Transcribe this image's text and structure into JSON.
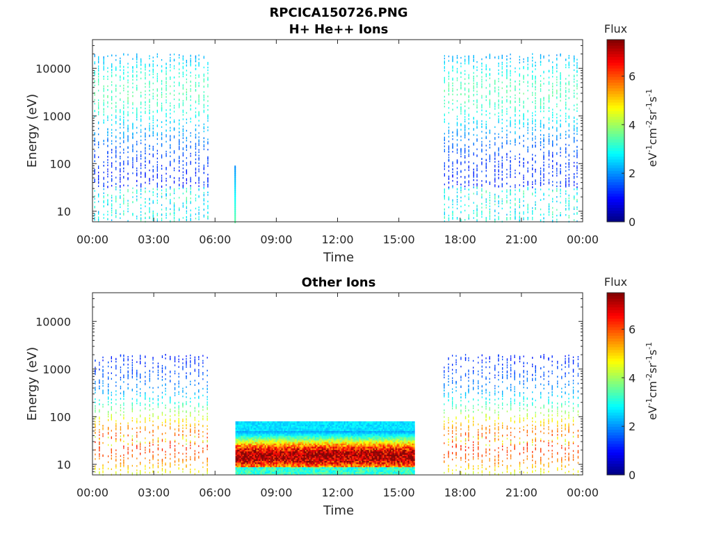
{
  "figure": {
    "filename": "RPCICA150726.PNG"
  },
  "chart_data": [
    {
      "type": "heatmap",
      "title": "H+ He++ Ions",
      "xlabel": "Time",
      "ylabel": "Energy (eV)",
      "x_ticks": [
        "00:00",
        "03:00",
        "06:00",
        "09:00",
        "12:00",
        "15:00",
        "18:00",
        "21:00",
        "00:00"
      ],
      "x_range_hours": [
        0,
        24
      ],
      "y_scale": "log",
      "y_ticks": [
        "10",
        "100",
        "1000",
        "10000"
      ],
      "y_range": [
        6,
        40000
      ],
      "colorbar": {
        "title": "Flux",
        "label_base": "eV",
        "label_units": "cm",
        "label_units2": "sr",
        "label_units3": "s",
        "sup_neg1": "-1",
        "sup_neg2": "-2",
        "ticks": [
          "0",
          "2",
          "4",
          "6"
        ],
        "range": [
          0,
          7.5
        ],
        "colormap": "jet"
      },
      "segments": [
        {
          "start_h": 0.0,
          "end_h": 5.9,
          "kind": "sweeps",
          "e_min": 6,
          "e_max": 20000,
          "peak_flux": 2.2,
          "peak_e": 3000
        },
        {
          "start_h": 6.95,
          "end_h": 7.05,
          "kind": "spike",
          "e_min": 6,
          "e_max": 85,
          "peak_flux": 3.5,
          "peak_e": 10
        },
        {
          "start_h": 17.1,
          "end_h": 24.0,
          "kind": "sweeps",
          "e_min": 6,
          "e_max": 20000,
          "peak_flux": 2.2,
          "peak_e": 3000
        }
      ]
    },
    {
      "type": "heatmap",
      "title": "Other Ions",
      "xlabel": "Time",
      "ylabel": "Energy (eV)",
      "x_ticks": [
        "00:00",
        "03:00",
        "06:00",
        "09:00",
        "12:00",
        "15:00",
        "18:00",
        "21:00",
        "00:00"
      ],
      "x_range_hours": [
        0,
        24
      ],
      "y_scale": "log",
      "y_ticks": [
        "10",
        "100",
        "1000",
        "10000"
      ],
      "y_range": [
        6,
        40000
      ],
      "colorbar": {
        "title": "Flux",
        "label_base": "eV",
        "label_units": "cm",
        "label_units2": "sr",
        "label_units3": "s",
        "sup_neg1": "-1",
        "sup_neg2": "-2",
        "ticks": [
          "0",
          "2",
          "4",
          "6"
        ],
        "range": [
          0,
          7.5
        ],
        "colormap": "jet"
      },
      "segments": [
        {
          "start_h": 0.0,
          "end_h": 5.9,
          "kind": "sparse",
          "e_min": 6,
          "e_max": 2000,
          "peak_flux": 5.0,
          "peak_e": 25
        },
        {
          "start_h": 7.0,
          "end_h": 15.85,
          "kind": "dense",
          "e_min": 6,
          "e_max": 80,
          "peak_flux": 6.8,
          "peak_e": 15
        },
        {
          "start_h": 17.1,
          "end_h": 24.0,
          "kind": "sparse",
          "e_min": 6,
          "e_max": 2000,
          "peak_flux": 5.0,
          "peak_e": 25
        }
      ]
    }
  ]
}
